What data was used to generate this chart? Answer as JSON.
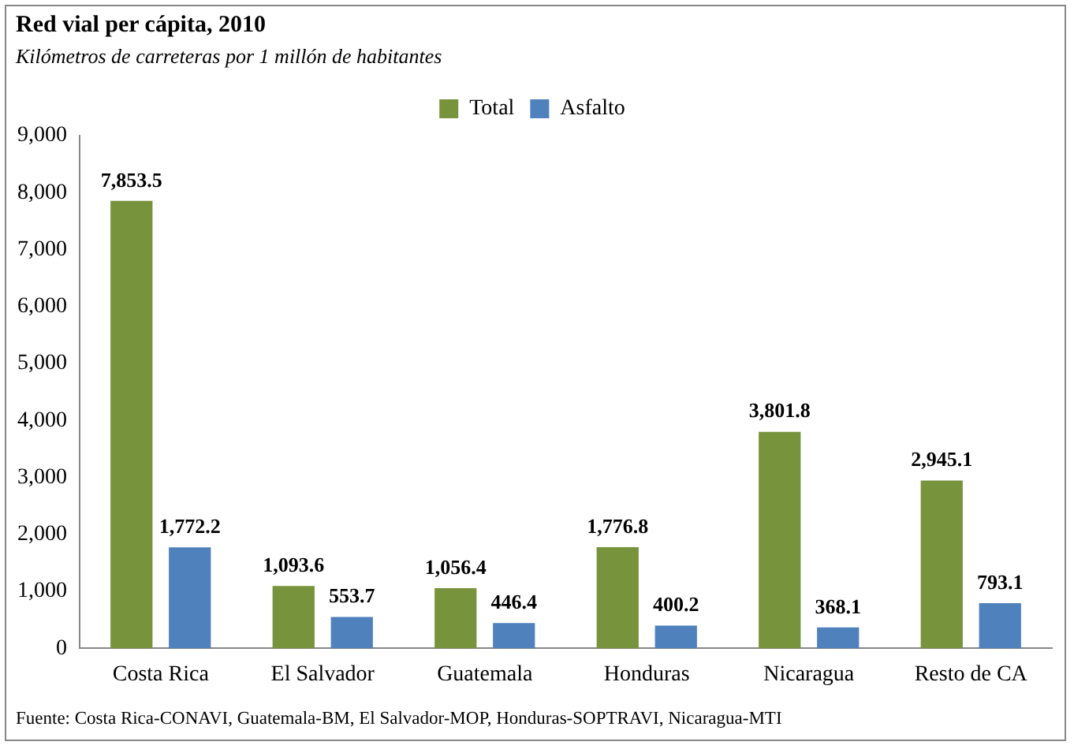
{
  "chart_data": {
    "type": "bar",
    "title": "Red vial per cápita, 2010",
    "subtitle": "Kilómetros de carreteras por 1 millón de habitantes",
    "categories": [
      "Costa Rica",
      "El Salvador",
      "Guatemala",
      "Honduras",
      "Nicaragua",
      "Resto de CA"
    ],
    "series": [
      {
        "name": "Total",
        "color": "#77933c",
        "values": [
          7853.5,
          1093.6,
          1056.4,
          1776.8,
          3801.8,
          2945.1
        ],
        "value_labels": [
          "7,853.5",
          "1,093.6",
          "1,056.4",
          "1,776.8",
          "3,801.8",
          "2,945.1"
        ]
      },
      {
        "name": "Asfalto",
        "color": "#4f81bd",
        "values": [
          1772.2,
          553.7,
          446.4,
          400.2,
          368.1,
          793.1
        ],
        "value_labels": [
          "1,772.2",
          "553.7",
          "446.4",
          "400.2",
          "368.1",
          "793.1"
        ]
      }
    ],
    "ylim": [
      0,
      9000
    ],
    "yticks": [
      {
        "value": 0,
        "label": "0"
      },
      {
        "value": 1000,
        "label": "1,000"
      },
      {
        "value": 2000,
        "label": "2,000"
      },
      {
        "value": 3000,
        "label": "3,000"
      },
      {
        "value": 4000,
        "label": "4,000"
      },
      {
        "value": 5000,
        "label": "5,000"
      },
      {
        "value": 6000,
        "label": "6,000"
      },
      {
        "value": 7000,
        "label": "7,000"
      },
      {
        "value": 8000,
        "label": "8,000"
      },
      {
        "value": 9000,
        "label": "9,000"
      }
    ],
    "grid": false,
    "legend": "top",
    "annotations": [
      "Fuente: Costa Rica-CONAVI, Guatemala-BM, El Salvador-MOP, Honduras-SOPTRAVI, Nicaragua-MTI"
    ]
  }
}
